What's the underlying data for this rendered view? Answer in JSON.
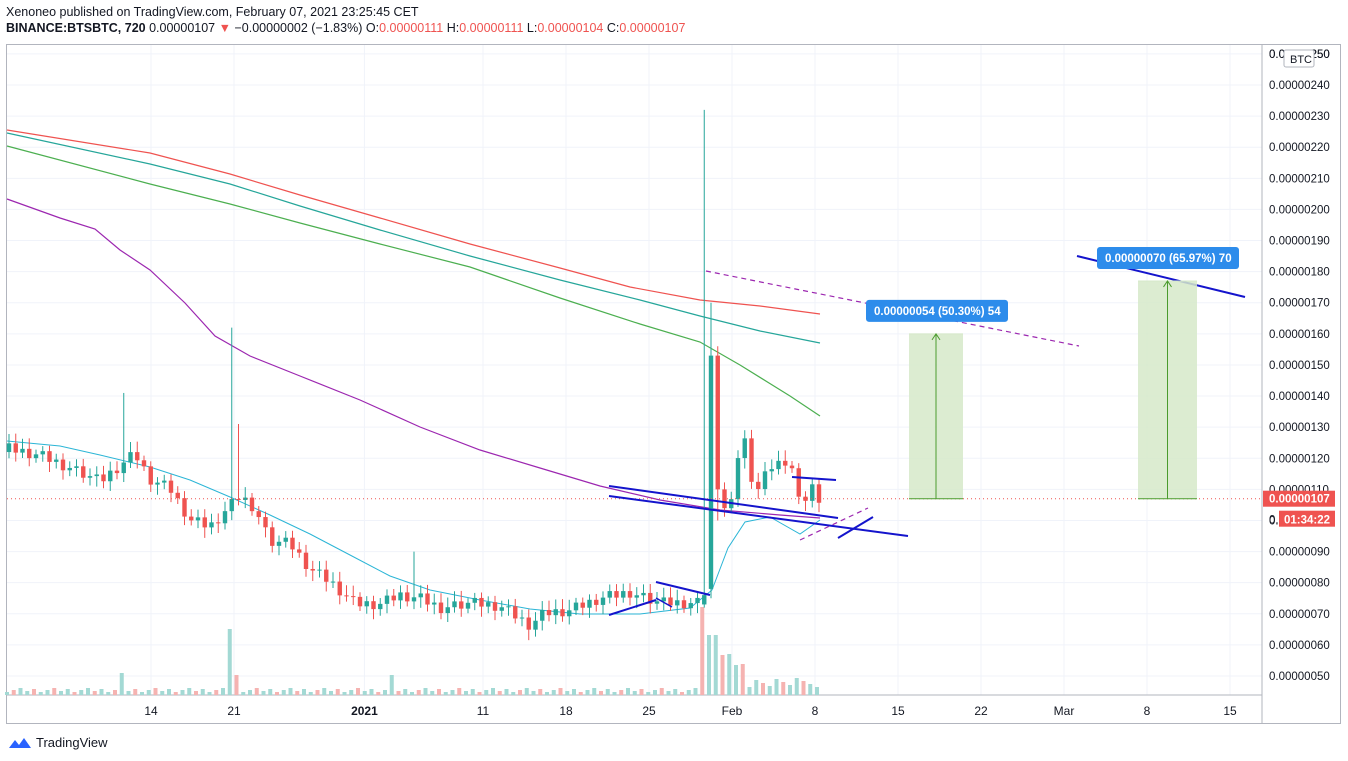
{
  "header": {
    "line1": "Xenoneo published on TradingView.com, February 07, 2021 23:25:45 CET",
    "symbol": "BINANCE:BTSBTC, 720",
    "last": "0.00000107",
    "arrow": "▼",
    "change": "−0.00000002 (−1.83%)",
    "o_label": "O:",
    "o_value": "0.00000111",
    "h_label": "H:",
    "h_value": "0.00000111",
    "l_label": "L:",
    "l_value": "0.00000104",
    "c_label": "C:",
    "c_value": "0.00000107"
  },
  "footer": {
    "brand": "TradingView"
  },
  "colors": {
    "up": "#26a69a",
    "down": "#ef5350",
    "ma_red": "#ef5350",
    "ma_teal": "#26a69a",
    "ma_green": "#4caf50",
    "ma_purple": "#9c27b0",
    "ma_cyan": "#2bb5d6",
    "trend": "#1414cc",
    "label_bg": "#2d8ceb",
    "target_fill": "#d6e9c9",
    "target_line": "#4b9b2e"
  },
  "chart_data": {
    "type": "candlestick",
    "currency_label": "BTC",
    "y_ticks": [
      "0.00000050",
      "0.00000060",
      "0.00000070",
      "0.00000080",
      "0.00000090",
      "0.00000100",
      "0.00000110",
      "0.00000120",
      "0.00000130",
      "0.00000140",
      "0.00000150",
      "0.00000160",
      "0.00000170",
      "0.00000180",
      "0.00000190",
      "0.00000200",
      "0.00000210",
      "0.00000220",
      "0.00000230",
      "0.00000240",
      "0.00000250"
    ],
    "ylim": [
      4.5e-07,
      2.52e-06
    ],
    "x_ticks": [
      "14",
      "21",
      "2021",
      "11",
      "18",
      "25",
      "Feb",
      "8",
      "15",
      "22",
      "Mar",
      "8",
      "15"
    ],
    "x_tick_bold": "2021",
    "last_price_label": "0.00000107",
    "countdown_label": "01:34:22",
    "countdown_prefix": "0.",
    "targets": [
      {
        "label": "0.00000054 (50.30%) 54",
        "from": 1.07e-06,
        "to": 1.6e-06
      },
      {
        "label": "0.00000070 (65.97%) 70",
        "from": 1.07e-06,
        "to": 1.77e-06
      }
    ],
    "candles_desc": "approx. 12h candles, Dec 8 2020 – Feb 7 2021",
    "series": [
      {
        "name": "",
        "kind": "moving_average",
        "color": "red"
      },
      {
        "name": "",
        "kind": "moving_average",
        "color": "teal"
      },
      {
        "name": "",
        "kind": "moving_average",
        "color": "green"
      },
      {
        "name": "",
        "kind": "moving_average",
        "color": "purple"
      },
      {
        "name": "",
        "kind": "moving_average",
        "color": "cyan"
      }
    ]
  }
}
